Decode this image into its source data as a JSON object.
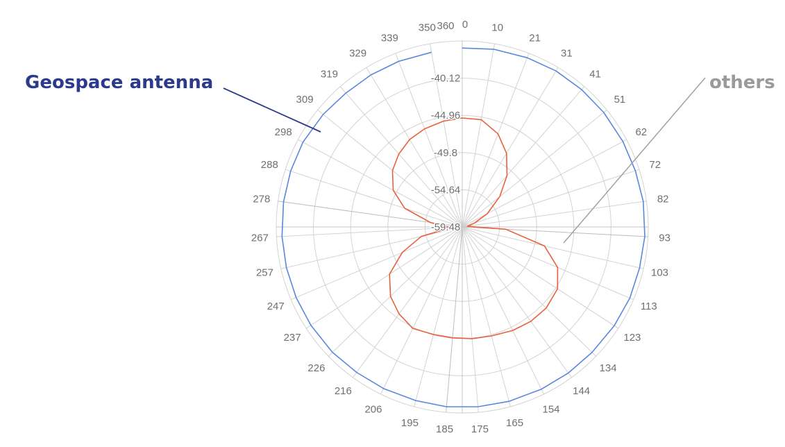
{
  "annotations": {
    "geospace": {
      "text": "Geospace antenna",
      "color": "#2b3a8c"
    },
    "others": {
      "text": "others",
      "color": "#9a9a9a"
    }
  },
  "chart_data": {
    "type": "polar-line",
    "angle_tick_labels": [
      "0",
      "10",
      "21",
      "31",
      "41",
      "51",
      "62",
      "72",
      "82",
      "93",
      "103",
      "113",
      "123",
      "134",
      "144",
      "154",
      "165",
      "175",
      "185",
      "195",
      "206",
      "216",
      "226",
      "237",
      "247",
      "257",
      "267",
      "278",
      "288",
      "298",
      "309",
      "319",
      "329",
      "339",
      "350",
      "360"
    ],
    "radial_tick_labels": [
      "-59.48",
      "-54.64",
      "-49.8",
      "-44.96",
      "-40.12"
    ],
    "r_range": [
      -59.48,
      -35.28
    ],
    "grid": true,
    "series": [
      {
        "color": "#5b86e0",
        "angles": [
          0,
          10,
          21,
          31,
          41,
          51,
          62,
          72,
          82,
          93,
          103,
          113,
          123,
          134,
          144,
          154,
          165,
          175,
          185,
          195,
          206,
          216,
          226,
          237,
          247,
          257,
          267,
          278,
          288,
          298,
          309,
          319,
          329,
          339,
          350
        ],
        "values": [
          -36.2,
          -36.0,
          -35.9,
          -35.8,
          -35.8,
          -35.8,
          -35.8,
          -35.8,
          -35.7,
          -35.7,
          -35.8,
          -35.8,
          -35.9,
          -36.0,
          -36.0,
          -36.0,
          -36.0,
          -36.0,
          -36.0,
          -36.1,
          -36.1,
          -36.1,
          -36.0,
          -36.0,
          -36.0,
          -36.0,
          -36.0,
          -36.0,
          -36.0,
          -36.0,
          -36.2,
          -36.4,
          -36.4,
          -36.4,
          -36.4
        ]
      },
      {
        "color": "#e8603c",
        "angles": [
          0,
          10,
          21,
          31,
          41,
          51,
          62,
          72,
          82,
          93,
          103,
          113,
          123,
          134,
          144,
          154,
          165,
          175,
          185,
          195,
          206,
          216,
          226,
          237,
          247,
          257,
          267,
          278,
          288,
          298,
          309,
          319,
          329,
          339,
          350
        ],
        "values": [
          -45.3,
          -45.3,
          -46.5,
          -48.3,
          -50.6,
          -53.2,
          -55.8,
          -57.8,
          -58.8,
          -53.8,
          -48.5,
          -46.0,
          -44.7,
          -44.3,
          -44.3,
          -44.5,
          -44.8,
          -44.9,
          -45.0,
          -45.0,
          -44.8,
          -45.5,
          -46.5,
          -48.2,
          -51.0,
          -54.0,
          -58.0,
          -55.3,
          -51.6,
          -49.3,
          -47.8,
          -46.9,
          -46.2,
          -45.8,
          -45.5
        ]
      }
    ]
  }
}
